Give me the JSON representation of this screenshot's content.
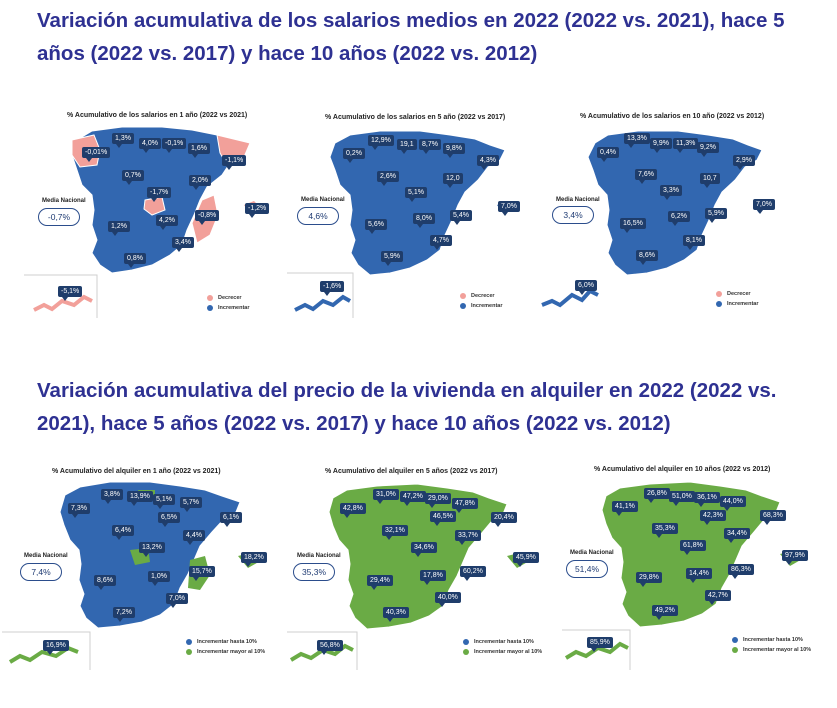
{
  "headings": {
    "salaries": "Variación acumulativa de los salarios medios en 2022 (2022 vs. 2021), hace 5 años (2022 vs. 2017) y hace 10 años (2022 vs. 2012)",
    "rent": "Variación acumulativa del precio de la vivienda en alquiler en 2022 (2022 vs. 2021), hace 5 años (2022 vs. 2017) y hace 10 años (2022 vs. 2012)"
  },
  "colors": {
    "heading": "#2e3192",
    "blue": "#3267b0",
    "pink": "#f2a09a",
    "green": "#6aab45",
    "badge": "#1f3d6b"
  },
  "media_label": "Media Nacional",
  "salary_maps": [
    {
      "title": "% Acumulativo de los salarios en 1 año (2022 vs 2021)",
      "national": "-0,7%",
      "labels": [
        "1,3%",
        "4,0%",
        "-0,1%",
        "-0,01%",
        "1,6%",
        "-1,1%",
        "0,7%",
        "2,0%",
        "-1,7%",
        "-1,2%",
        "4,2%",
        "-0,8%",
        "1,2%",
        "3,4%",
        "0,8%",
        "-5,1%"
      ],
      "legend": [
        "Decrecer",
        "Incrementar"
      ]
    },
    {
      "title": "% Acumulativo de los salarios en 5 año (2022 vs 2017)",
      "national": "4,6%",
      "labels": [
        "12,9%",
        "19,1",
        "8,7%",
        "9,8%",
        "0,2%",
        "4,3%",
        "2,6%",
        "12,0",
        "5,1%",
        "7,0%",
        "5,6%",
        "8,0%",
        "5,4%",
        "4,7%",
        "5,9%",
        "-1,6%"
      ],
      "legend": [
        "Decrecer",
        "Incrementar"
      ]
    },
    {
      "title": "% Acumulativo de los salarios en 10 año (2022 vs 2012)",
      "national": "3,4%",
      "labels": [
        "13,3%",
        "9,9%",
        "11,3%",
        "9,2%",
        "0,4%",
        "2,9%",
        "7,6%",
        "10,7",
        "3,3%",
        "7,0%",
        "16,5%",
        "6,2%",
        "5,9%",
        "8,1%",
        "8,6%",
        "6,0%"
      ],
      "legend": [
        "Decrecer",
        "Incrementar"
      ]
    }
  ],
  "rent_maps": [
    {
      "title": "% Acumulativo del alquiler en 1 año (2022 vs 2021)",
      "national": "7,4%",
      "labels": [
        "3,8%",
        "13,9%",
        "7,3%",
        "5,1%",
        "5,7%",
        "6,5%",
        "6,1%",
        "6,4%",
        "4,4%",
        "13,2%",
        "18,2%",
        "15,7%",
        "8,6%",
        "1,0%",
        "7,0%",
        "7,2%",
        "16,9%"
      ],
      "legend": [
        "Incrementar hasta 10%",
        "Incrementar mayor al 10%"
      ]
    },
    {
      "title": "% Acumulativo del alquiler en 5 años (2022 vs 2017)",
      "national": "35,3%",
      "labels": [
        "31,0%",
        "47,2%",
        "29,0%",
        "47,8%",
        "42,8%",
        "46,5%",
        "20,4%",
        "32,1%",
        "33,7%",
        "34,6%",
        "45,9%",
        "29,4%",
        "17,8%",
        "60,2%",
        "40,0%",
        "40,3%",
        "56,8%"
      ],
      "legend": [
        "Incrementar hasta 10%",
        "Incrementar mayor al 10%"
      ]
    },
    {
      "title": "% Acumulativo del alquiler en 10 años (2022 vs 2012)",
      "national": "51,4%",
      "labels": [
        "26,8%",
        "51,0%",
        "36,1%",
        "44,0%",
        "41,1%",
        "42,3%",
        "68,3%",
        "35,3%",
        "34,4%",
        "61,8%",
        "97,9%",
        "29,8%",
        "14,4%",
        "86,3%",
        "42,7%",
        "49,2%",
        "85,9%"
      ],
      "legend": [
        "Incrementar hasta 10%",
        "Incrementar mayor al 10%"
      ]
    }
  ]
}
